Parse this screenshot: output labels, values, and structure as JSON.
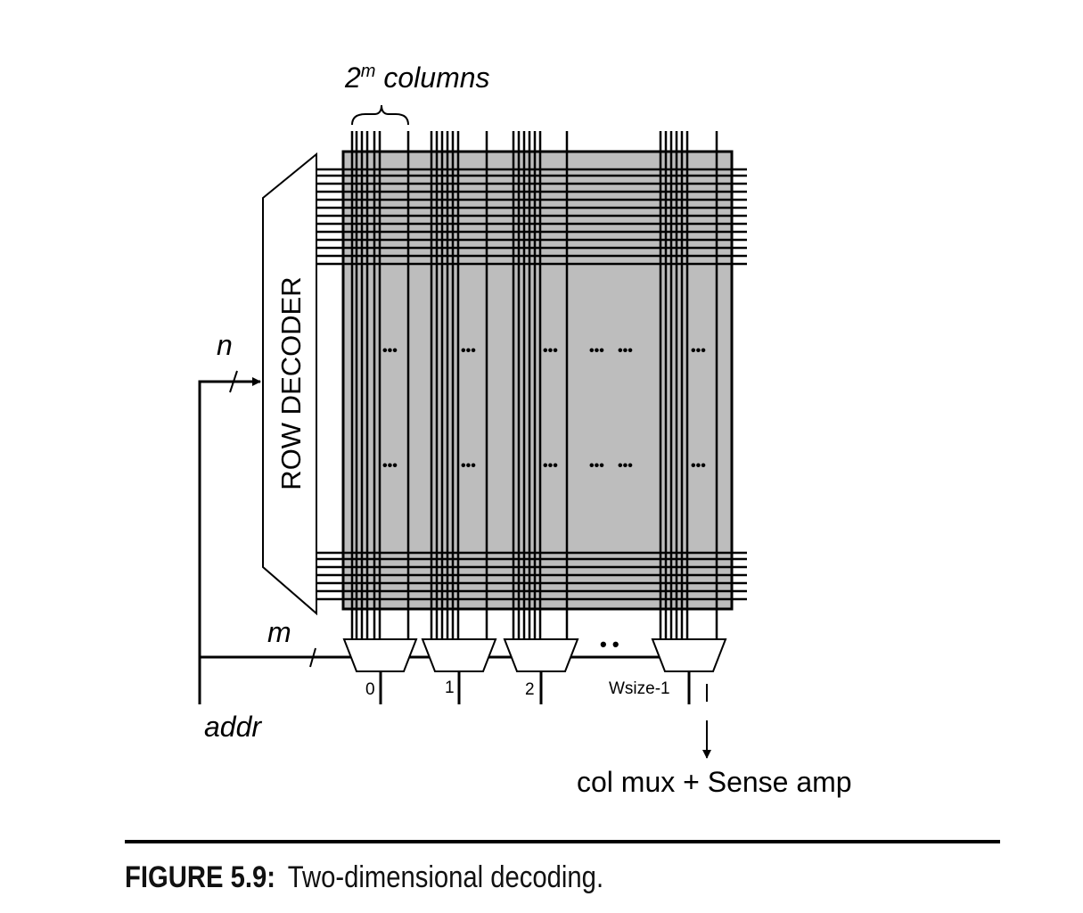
{
  "figure": {
    "label": "FIGURE 5.9:",
    "title": "Two-dimensional decoding."
  },
  "diagram": {
    "columns_label": {
      "base": "2",
      "exp": "m",
      "text": " columns"
    },
    "row_decoder_label": "ROW DECODER",
    "n_label": "n",
    "m_label": "m",
    "addr_label": "addr",
    "ellipsis": "•••",
    "mux_dots": "• •",
    "mux_labels": [
      "0",
      "1",
      "2",
      "Wsize-1"
    ],
    "output_label": "col mux + Sense amp"
  },
  "colors": {
    "array_fill": "#bdbdbd",
    "line": "#000000"
  }
}
